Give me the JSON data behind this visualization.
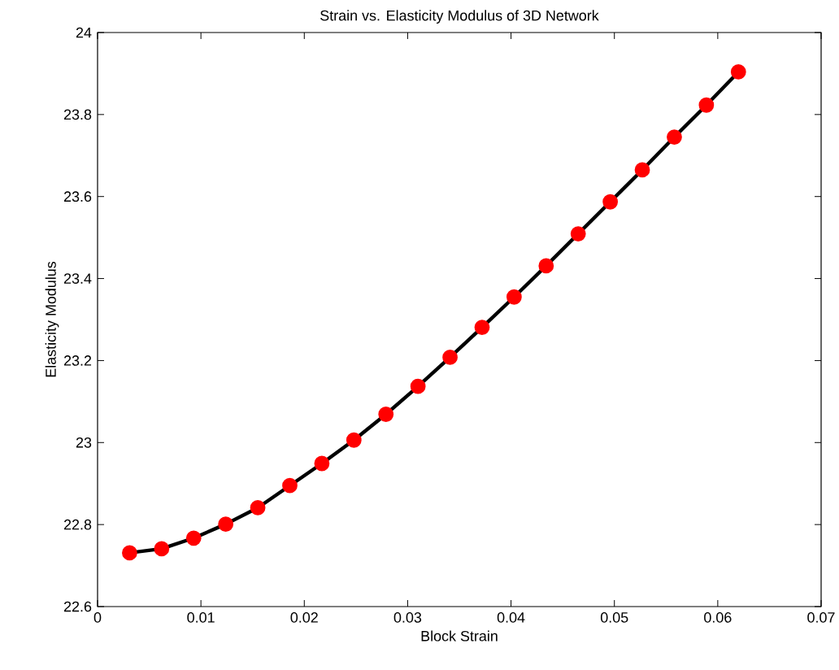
{
  "chart_data": {
    "type": "line",
    "title": "Strain vs. Elasticity Modulus of 3D Network",
    "xlabel": "Block Strain",
    "ylabel": "Elasticity Modulus",
    "x": [
      0.0031,
      0.0062,
      0.0093,
      0.0124,
      0.0155,
      0.0186,
      0.0217,
      0.0248,
      0.0279,
      0.031,
      0.0341,
      0.0372,
      0.0403,
      0.0434,
      0.0465,
      0.0496,
      0.0527,
      0.0558,
      0.0589,
      0.062
    ],
    "series": [
      {
        "color": "#ff0000",
        "values": [
          22.731,
          22.741,
          22.767,
          22.801,
          22.841,
          22.895,
          22.949,
          23.006,
          23.069,
          23.137,
          23.208,
          23.281,
          23.355,
          23.431,
          23.509,
          23.587,
          23.665,
          23.745,
          23.823,
          23.904
        ]
      }
    ],
    "xlim": [
      0,
      0.07
    ],
    "ylim": [
      22.6,
      24
    ],
    "xticks": [
      0,
      0.01,
      0.02,
      0.03,
      0.04,
      0.05,
      0.06,
      0.07
    ],
    "yticks": [
      22.6,
      22.8,
      23,
      23.2,
      23.4,
      23.6,
      23.8,
      24
    ],
    "grid": false,
    "marker": "circle",
    "line_style": "solid"
  }
}
